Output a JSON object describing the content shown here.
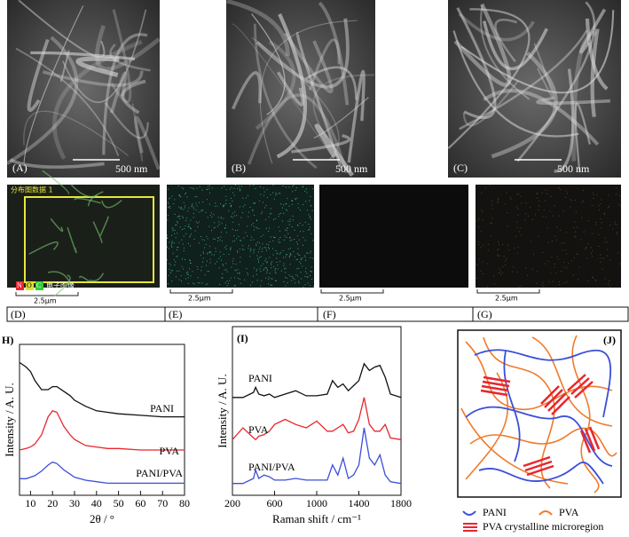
{
  "panels": {
    "A": {
      "label": "(A)",
      "scale": "500 nm"
    },
    "B": {
      "label": "(B)",
      "scale": "500 nm"
    },
    "C": {
      "label": "(C)",
      "scale": "500 nm"
    },
    "D": {
      "label": "(D)",
      "scale": "2.5μm",
      "map_title": "分布图数据 1",
      "tags": [
        "N",
        "O",
        "C"
      ],
      "image_tag": "电子图像"
    },
    "E": {
      "label": "(E)",
      "scale": "2.5μm"
    },
    "F": {
      "label": "(F)",
      "scale": "2.5μm"
    },
    "G": {
      "label": "(G)",
      "scale": "2.5μm"
    },
    "J": {
      "label": "(J)",
      "legend": [
        "PANI",
        "PVA",
        "PVA crystalline microregion"
      ]
    }
  },
  "chart_data": [
    {
      "type": "line",
      "panel_label": "H)",
      "x_label": "2θ / °",
      "y_label": "Intensity / A. U.",
      "x": [
        5,
        8,
        10,
        12,
        15,
        18,
        20,
        22,
        25,
        28,
        30,
        35,
        40,
        45,
        50,
        60,
        70,
        80
      ],
      "series": [
        {
          "name": "PANI",
          "color": "#111111",
          "values": [
            88,
            85,
            82,
            76,
            70,
            70,
            72,
            72,
            69,
            66,
            63,
            59,
            56,
            55,
            54,
            53,
            52,
            52
          ]
        },
        {
          "name": "PVA",
          "color": "#e8262d",
          "values": [
            30,
            31,
            32,
            34,
            40,
            52,
            56,
            55,
            46,
            40,
            37,
            33,
            32,
            31,
            31,
            30,
            30,
            30
          ]
        },
        {
          "name": "PANI/PVA",
          "color": "#3b4fd8",
          "values": [
            11,
            11,
            12,
            13,
            16,
            20,
            22,
            21,
            17,
            14,
            12,
            10,
            9,
            8,
            8,
            8,
            8,
            8
          ]
        }
      ],
      "xlim": [
        5,
        80
      ],
      "xticks": [
        10,
        20,
        30,
        40,
        50,
        60,
        70,
        80
      ],
      "ylim": [
        0,
        100
      ]
    },
    {
      "type": "line",
      "panel_label": "(I)",
      "x_label": "Raman shift / cm⁻¹",
      "y_label": "Intensity / A. U.",
      "x": [
        200,
        300,
        400,
        420,
        450,
        500,
        550,
        600,
        700,
        800,
        900,
        1000,
        1100,
        1150,
        1200,
        1250,
        1300,
        1350,
        1400,
        1450,
        1500,
        1550,
        1600,
        1650,
        1700,
        1800
      ],
      "series": [
        {
          "name": "PANI",
          "color": "#111111",
          "values": [
            58,
            58,
            61,
            64,
            60,
            59,
            60,
            58,
            60,
            62,
            59,
            59,
            60,
            68,
            64,
            66,
            62,
            65,
            68,
            78,
            74,
            76,
            77,
            70,
            60,
            58
          ]
        },
        {
          "name": "PVA",
          "color": "#e8262d",
          "values": [
            33,
            40,
            34,
            33,
            35,
            36,
            38,
            42,
            45,
            42,
            40,
            44,
            38,
            38,
            40,
            42,
            37,
            38,
            45,
            58,
            42,
            38,
            38,
            42,
            34,
            33
          ]
        },
        {
          "name": "PANI/PVA",
          "color": "#3b4fd8",
          "values": [
            7,
            7,
            10,
            15,
            10,
            12,
            11,
            9,
            9,
            10,
            9,
            9,
            9,
            18,
            12,
            22,
            10,
            12,
            18,
            40,
            22,
            18,
            24,
            12,
            8,
            7
          ]
        }
      ],
      "xlim": [
        200,
        1800
      ],
      "xticks": [
        200,
        600,
        1000,
        1400,
        1800
      ],
      "ylim": [
        0,
        100
      ]
    }
  ]
}
